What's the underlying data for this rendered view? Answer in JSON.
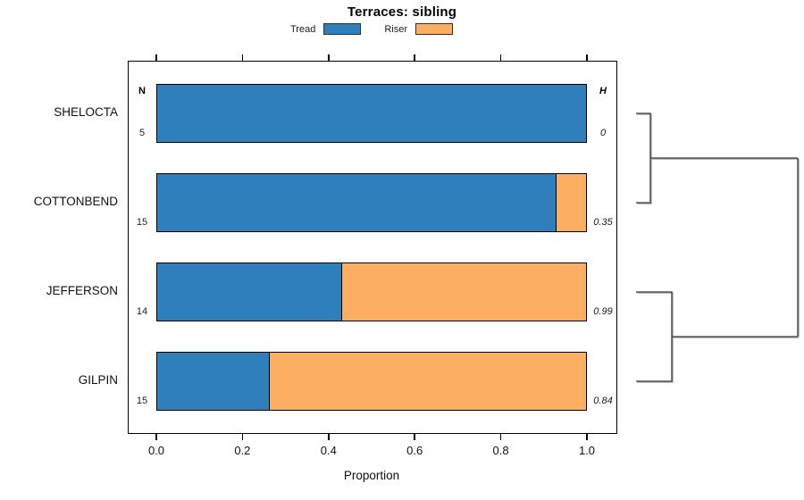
{
  "title": "Terraces: sibling",
  "legend": [
    {
      "label": "Tread",
      "color": "#2E7FBC"
    },
    {
      "label": "Riser",
      "color": "#FCAE63"
    }
  ],
  "chart_data": {
    "type": "bar",
    "orientation": "horizontal",
    "stacked": true,
    "title": "Terraces: sibling",
    "xlabel": "Proportion",
    "xlim": [
      0.0,
      1.0
    ],
    "xticks": [
      "0.0",
      "0.2",
      "0.4",
      "0.6",
      "0.8",
      "1.0"
    ],
    "grid": false,
    "legend_position": "top",
    "categories": [
      "SHELOCTA",
      "COTTONBEND",
      "JEFFERSON",
      "GILPIN"
    ],
    "n_column": {
      "header": "N",
      "values": [
        "5",
        "15",
        "14",
        "15"
      ]
    },
    "h_column": {
      "header": "H",
      "values": [
        "0",
        "0.35",
        "0.99",
        "0.84"
      ]
    },
    "series": [
      {
        "name": "Tread",
        "color": "#2E7FBC",
        "values": [
          1.0,
          0.93,
          0.43,
          0.26
        ]
      },
      {
        "name": "Riser",
        "color": "#FCAE63",
        "values": [
          0.0,
          0.07,
          0.57,
          0.74
        ]
      }
    ],
    "bar_border_color": "#000000",
    "dendrogram": {
      "line_color": "#383838",
      "pairs": [
        {
          "members": [
            0,
            1
          ]
        },
        {
          "members": [
            2,
            3
          ]
        }
      ],
      "root_joins_pairs": [
        0,
        1
      ]
    }
  }
}
